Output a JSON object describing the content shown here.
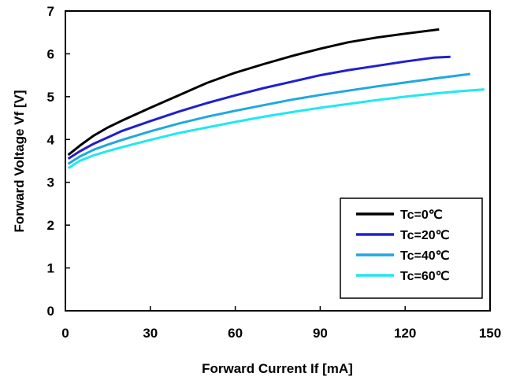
{
  "chart_data": {
    "type": "line",
    "title": "",
    "xlabel": "Forward Current If [mA]",
    "ylabel": "Forward Voltage Vf [V]",
    "xlim": [
      0,
      150
    ],
    "ylim": [
      0,
      7
    ],
    "xticks": [
      "0",
      "30",
      "60",
      "90",
      "120",
      "150"
    ],
    "yticks": [
      "0",
      "1",
      "2",
      "3",
      "4",
      "5",
      "6",
      "7"
    ],
    "grid": false,
    "legend_position": "bottom-right",
    "series": [
      {
        "name": "Tc=0℃",
        "color": "#000000",
        "x": [
          1,
          5,
          10,
          15,
          20,
          30,
          40,
          50,
          60,
          70,
          80,
          90,
          100,
          110,
          120,
          132
        ],
        "y": [
          3.64,
          3.85,
          4.09,
          4.28,
          4.44,
          4.74,
          5.03,
          5.32,
          5.56,
          5.76,
          5.95,
          6.12,
          6.27,
          6.38,
          6.47,
          6.57
        ]
      },
      {
        "name": "Tc=20℃",
        "color": "#1f1fd0",
        "x": [
          1,
          5,
          10,
          15,
          20,
          30,
          40,
          50,
          60,
          70,
          80,
          90,
          100,
          110,
          120,
          130,
          136
        ],
        "y": [
          3.55,
          3.72,
          3.9,
          4.05,
          4.2,
          4.43,
          4.65,
          4.85,
          5.03,
          5.2,
          5.35,
          5.5,
          5.62,
          5.72,
          5.82,
          5.91,
          5.93
        ]
      },
      {
        "name": "Tc=40℃",
        "color": "#1fa8e0",
        "x": [
          1,
          5,
          10,
          15,
          20,
          30,
          40,
          50,
          60,
          70,
          80,
          90,
          100,
          110,
          120,
          130,
          143
        ],
        "y": [
          3.43,
          3.6,
          3.76,
          3.88,
          3.99,
          4.19,
          4.37,
          4.53,
          4.67,
          4.8,
          4.93,
          5.04,
          5.14,
          5.24,
          5.33,
          5.42,
          5.53
        ]
      },
      {
        "name": "Tc=60℃",
        "color": "#1fe8f0",
        "x": [
          1,
          5,
          10,
          15,
          20,
          30,
          40,
          50,
          60,
          70,
          80,
          90,
          100,
          110,
          120,
          130,
          140,
          148
        ],
        "y": [
          3.33,
          3.5,
          3.63,
          3.73,
          3.82,
          3.99,
          4.15,
          4.28,
          4.41,
          4.53,
          4.64,
          4.74,
          4.83,
          4.92,
          5.0,
          5.07,
          5.13,
          5.17
        ]
      }
    ]
  }
}
